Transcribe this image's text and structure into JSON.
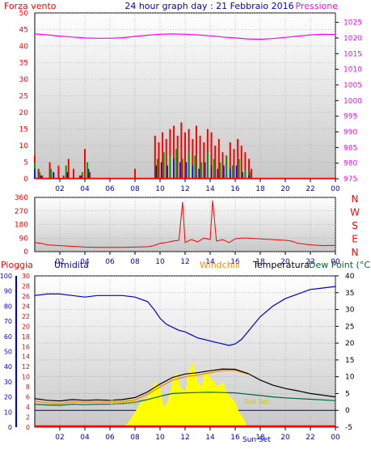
{
  "colors": {
    "wind": "#ff0000",
    "gust_green": "#00a000",
    "gust_blue": "#0000ff",
    "pressure": "#ff00ff",
    "direction": "#ff0000",
    "rain": "#ff0000",
    "humidity": "#0000cc",
    "windchill": "#ff8c00",
    "temperature": "#000000",
    "dewpoint": "#006633",
    "solar": "#ffff00",
    "title": "#0000cc"
  },
  "chart_data": [
    {
      "type": "line",
      "title": "24 hour graph day : 21 Febbraio 2016",
      "left_label": "Forza vento",
      "right_label": "Pressione",
      "x_ticks": [
        "02",
        "04",
        "06",
        "08",
        "10",
        "12",
        "14",
        "16",
        "18",
        "20",
        "22",
        "00"
      ],
      "ylim_left": [
        0,
        50
      ],
      "y_ticks_left": [
        "0",
        "5",
        "10",
        "15",
        "20",
        "25",
        "30",
        "35",
        "40",
        "45",
        "50"
      ],
      "ylim_right": [
        975,
        1028
      ],
      "y_ticks_right": [
        "975",
        "980",
        "985",
        "990",
        "995",
        "1000",
        "1005",
        "1010",
        "1015",
        "1020",
        "1025"
      ],
      "series": [
        {
          "key": "pressure",
          "x": [
            0,
            1,
            2,
            3,
            4,
            5,
            6,
            7,
            8,
            9,
            10,
            11,
            12,
            13,
            14,
            15,
            16,
            17,
            18,
            19,
            20,
            21,
            22,
            23,
            24
          ],
          "values": [
            1021.3,
            1021.0,
            1020.6,
            1020.3,
            1020.0,
            1019.9,
            1019.9,
            1020.1,
            1020.5,
            1020.9,
            1021.2,
            1021.3,
            1021.2,
            1021.0,
            1020.7,
            1020.3,
            1020.0,
            1019.7,
            1019.6,
            1019.8,
            1020.2,
            1020.6,
            1021.0,
            1021.2,
            1021.1
          ]
        },
        {
          "key": "wind",
          "x": [
            0.0,
            0.3,
            0.6,
            1.2,
            1.5,
            1.9,
            2.3,
            2.7,
            3.1,
            3.6,
            4.0,
            4.4,
            8.0,
            9.6,
            9.9,
            10.2,
            10.5,
            10.8,
            11.1,
            11.4,
            11.7,
            12.0,
            12.3,
            12.6,
            12.9,
            13.2,
            13.5,
            13.8,
            14.1,
            14.4,
            14.7,
            15.0,
            15.3,
            15.6,
            15.9,
            16.2,
            16.5,
            16.8,
            17.1,
            17.3
          ],
          "values": [
            7,
            3,
            1,
            5,
            2,
            4,
            1,
            6,
            3,
            1,
            9,
            2,
            3,
            13,
            11,
            14,
            12,
            15,
            16,
            13,
            17,
            14,
            15,
            12,
            16,
            13,
            11,
            15,
            14,
            10,
            12,
            8,
            7,
            11,
            9,
            12,
            10,
            8,
            6,
            3
          ]
        },
        {
          "key": "gust_green",
          "x": [
            0.0,
            0.4,
            1.3,
            2.5,
            3.8,
            4.2,
            9.8,
            10.3,
            10.8,
            11.3,
            11.8,
            12.3,
            12.8,
            13.3,
            13.8,
            14.3,
            14.8,
            15.3,
            15.8,
            16.3,
            16.8,
            17.2
          ],
          "values": [
            5,
            2,
            3,
            4,
            2,
            5,
            6,
            8,
            7,
            9,
            6,
            8,
            7,
            5,
            8,
            6,
            5,
            7,
            4,
            6,
            3,
            2
          ]
        },
        {
          "key": "gust_blue",
          "x": [
            0.0,
            0.5,
            1.5,
            2.6,
            3.7,
            4.3,
            9.7,
            10.1,
            10.6,
            11.1,
            11.6,
            12.1,
            12.6,
            13.1,
            13.6,
            14.1,
            14.6,
            15.1,
            15.6,
            16.1,
            16.6,
            17.1
          ],
          "values": [
            3,
            1,
            2,
            2,
            1,
            3,
            4,
            5,
            4,
            6,
            5,
            5,
            4,
            3,
            5,
            4,
            3,
            4,
            3,
            4,
            2,
            1
          ]
        }
      ]
    },
    {
      "type": "line",
      "right_label": "N W S E N",
      "ylim": [
        0,
        360
      ],
      "y_ticks": [
        "0",
        "90",
        "180",
        "270",
        "360"
      ],
      "x_ticks": [
        "02",
        "04",
        "06",
        "08",
        "10",
        "12",
        "14",
        "16",
        "18",
        "20",
        "22",
        "00"
      ],
      "series": [
        {
          "key": "direction",
          "x": [
            0,
            0.5,
            1,
            2,
            3,
            4,
            5,
            6,
            7,
            8,
            9,
            9.5,
            10,
            10.5,
            11,
            11.5,
            11.8,
            12,
            12.5,
            13,
            13.5,
            14,
            14.2,
            14.5,
            15,
            15.5,
            16,
            16.5,
            17,
            18,
            19,
            20,
            20.5,
            21,
            22,
            23,
            24
          ],
          "values": [
            60,
            55,
            45,
            40,
            35,
            30,
            28,
            28,
            28,
            30,
            32,
            40,
            55,
            60,
            70,
            75,
            330,
            60,
            80,
            65,
            90,
            80,
            340,
            70,
            80,
            60,
            85,
            90,
            90,
            85,
            80,
            75,
            70,
            55,
            45,
            40,
            42
          ]
        }
      ]
    },
    {
      "type": "line",
      "labels": {
        "rain": "Pioggia",
        "humidity": "Umidita",
        "windchill": "Windchill",
        "temperature": "Temperatura",
        "dewpoint": "Dew Point (°C"
      },
      "annotations": [
        "Sun Rise",
        "Sun Set",
        "Sun Set"
      ],
      "x_ticks": [
        "02",
        "04",
        "06",
        "08",
        "10",
        "12",
        "14",
        "16",
        "18",
        "20",
        "22",
        "00"
      ],
      "ylim_humidity": [
        0,
        100
      ],
      "y_ticks_humidity": [
        "0",
        "10",
        "20",
        "30",
        "40",
        "50",
        "60",
        "70",
        "80",
        "90",
        "100"
      ],
      "ylim_rain": [
        0,
        30
      ],
      "y_ticks_rain": [
        "0",
        "2",
        "4",
        "6",
        "8",
        "10",
        "12",
        "14",
        "16",
        "18",
        "20",
        "22",
        "24",
        "26",
        "28",
        "30"
      ],
      "ylim_temp": [
        -5,
        40
      ],
      "y_ticks_temp": [
        "-5",
        "0",
        "5",
        "10",
        "15",
        "20",
        "25",
        "30",
        "35",
        "40"
      ],
      "series": [
        {
          "key": "humidity",
          "x": [
            0,
            1,
            2,
            3,
            4,
            5,
            6,
            7,
            8,
            9,
            9.5,
            10,
            10.5,
            11,
            11.5,
            12,
            12.5,
            13,
            13.5,
            14,
            14.5,
            15,
            15.5,
            16,
            16.5,
            17,
            17.5,
            18,
            19,
            20,
            21,
            22,
            23,
            24
          ],
          "values": [
            87,
            88,
            88,
            87,
            86,
            87,
            87,
            87,
            86,
            83,
            78,
            72,
            68,
            66,
            64,
            63,
            61,
            59,
            58,
            57,
            56,
            55,
            54,
            55,
            58,
            63,
            68,
            73,
            80,
            85,
            88,
            91,
            92,
            93
          ]
        },
        {
          "key": "temperature",
          "x": [
            0,
            1,
            2,
            3,
            4,
            5,
            6,
            7,
            8,
            9,
            10,
            11,
            12,
            13,
            14,
            15,
            16,
            17,
            18,
            19,
            20,
            21,
            22,
            23,
            24
          ],
          "values": [
            3.5,
            3.0,
            2.8,
            3.2,
            3.0,
            3.1,
            3.0,
            3.2,
            3.8,
            5.5,
            7.8,
            9.8,
            10.8,
            11.2,
            11.8,
            12.3,
            12.2,
            11.0,
            9.0,
            7.5,
            6.5,
            5.8,
            5.0,
            4.5,
            4.0
          ]
        },
        {
          "key": "windchill",
          "x": [
            0,
            1,
            2,
            3,
            4,
            5,
            6,
            7,
            8,
            9,
            10,
            11,
            12,
            13,
            14,
            15,
            16,
            17
          ],
          "values": [
            2.8,
            2.2,
            2.0,
            2.6,
            2.4,
            2.5,
            2.4,
            2.6,
            3.1,
            4.8,
            7.0,
            9.0,
            10.0,
            10.5,
            11.2,
            11.9,
            11.9,
            10.8
          ]
        },
        {
          "key": "dewpoint",
          "x": [
            0,
            1,
            2,
            3,
            4,
            5,
            6,
            7,
            8,
            9,
            10,
            11,
            12,
            13,
            14,
            15,
            16,
            17,
            18,
            19,
            20,
            21,
            22,
            23,
            24
          ],
          "values": [
            1.8,
            1.6,
            1.5,
            1.8,
            1.7,
            1.8,
            1.8,
            2.0,
            2.4,
            3.2,
            4.2,
            5.0,
            5.2,
            5.3,
            5.4,
            5.3,
            5.2,
            4.8,
            4.4,
            4.0,
            3.7,
            3.5,
            3.3,
            3.1,
            2.9
          ]
        },
        {
          "key": "solar",
          "x": [
            7.0,
            7.5,
            8.0,
            8.5,
            9.0,
            9.3,
            9.6,
            10.0,
            10.3,
            10.6,
            11.0,
            11.3,
            11.6,
            12.0,
            12.3,
            12.6,
            13.0,
            13.3,
            13.6,
            14.0,
            14.3,
            14.6,
            15.0,
            15.3,
            15.6,
            16.0,
            16.3,
            16.6,
            17.0
          ],
          "values": [
            0,
            1,
            3,
            5,
            6,
            7,
            9,
            8,
            4,
            5,
            9,
            11,
            8,
            7,
            11,
            13,
            9,
            8,
            11,
            10,
            9,
            8,
            9,
            7,
            6,
            5,
            3,
            2,
            0
          ]
        },
        {
          "key": "rain",
          "x": [
            0,
            24
          ],
          "values": [
            0,
            0
          ]
        }
      ]
    }
  ]
}
